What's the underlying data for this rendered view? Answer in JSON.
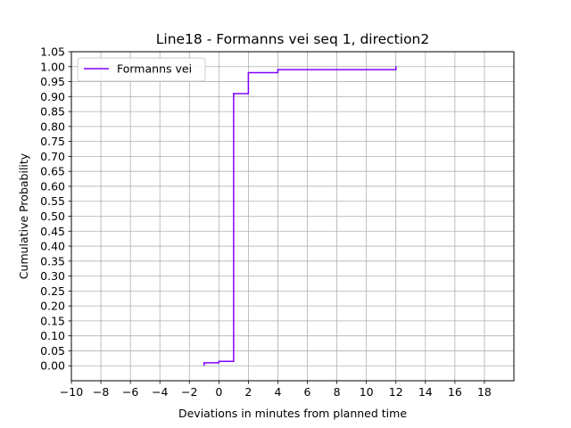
{
  "chart_data": {
    "type": "line",
    "step": "post",
    "title": "Line18 - Formanns vei seq 1, direction2",
    "xlabel": "Deviations in minutes from planned time",
    "ylabel": "Cumulative Probability",
    "xlim": [
      -10,
      20
    ],
    "ylim": [
      -0.05,
      1.05
    ],
    "xticks": [
      -10,
      -8,
      -6,
      -4,
      -2,
      0,
      2,
      4,
      6,
      8,
      10,
      12,
      14,
      16,
      18
    ],
    "xtick_labels": [
      "−10",
      "−8",
      "−6",
      "−4",
      "−2",
      "0",
      "2",
      "4",
      "6",
      "8",
      "10",
      "12",
      "14",
      "16",
      "18"
    ],
    "yticks": [
      0.0,
      0.05,
      0.1,
      0.15,
      0.2,
      0.25,
      0.3,
      0.35,
      0.4,
      0.45,
      0.5,
      0.55,
      0.6,
      0.65,
      0.7,
      0.75,
      0.8,
      0.85,
      0.9,
      0.95,
      1.0,
      1.05
    ],
    "ytick_labels": [
      "0.00",
      "0.05",
      "0.10",
      "0.15",
      "0.20",
      "0.25",
      "0.30",
      "0.35",
      "0.40",
      "0.45",
      "0.50",
      "0.55",
      "0.60",
      "0.65",
      "0.70",
      "0.75",
      "0.80",
      "0.85",
      "0.90",
      "0.95",
      "1.00",
      "1.05"
    ],
    "grid": true,
    "legend_position": "top-left",
    "series": [
      {
        "name": "Formanns vei",
        "color": "#8000ff",
        "x": [
          -1,
          0,
          1,
          2,
          4,
          12
        ],
        "y": [
          0.01,
          0.015,
          0.91,
          0.98,
          0.99,
          1.0
        ]
      }
    ]
  }
}
